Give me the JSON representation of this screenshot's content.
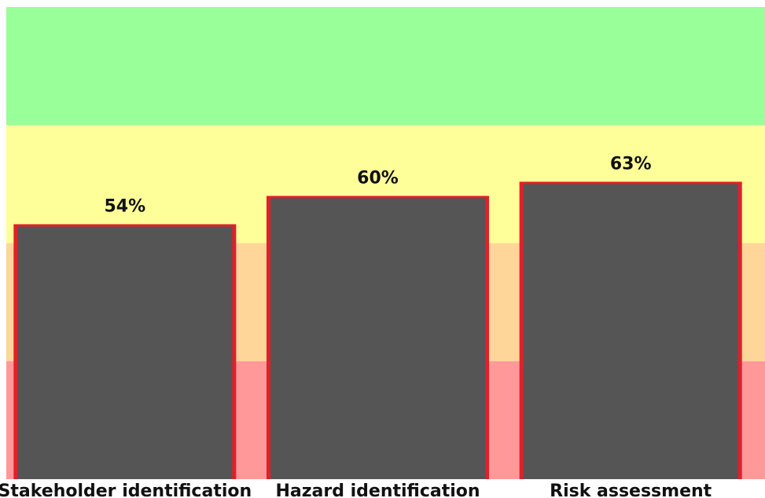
{
  "chart_data": {
    "type": "bar",
    "categories": [
      "Stakeholder identification",
      "Hazard identification",
      "Risk assessment"
    ],
    "values": [
      54,
      60,
      63
    ],
    "value_labels": [
      "54%",
      "60%",
      "63%"
    ],
    "title": "",
    "xlabel": "",
    "ylabel": "",
    "ylim": [
      0,
      100
    ],
    "grid": false,
    "legend": "none",
    "background_bands": [
      {
        "from": 0,
        "to": 25,
        "color": "#ff9999"
      },
      {
        "from": 25,
        "to": 50,
        "color": "#ffd699"
      },
      {
        "from": 50,
        "to": 75,
        "color": "#ffff99"
      },
      {
        "from": 75,
        "to": 100,
        "color": "#99ff99"
      }
    ],
    "bar_color": "#555555",
    "bar_border_color": "#e0202a"
  }
}
